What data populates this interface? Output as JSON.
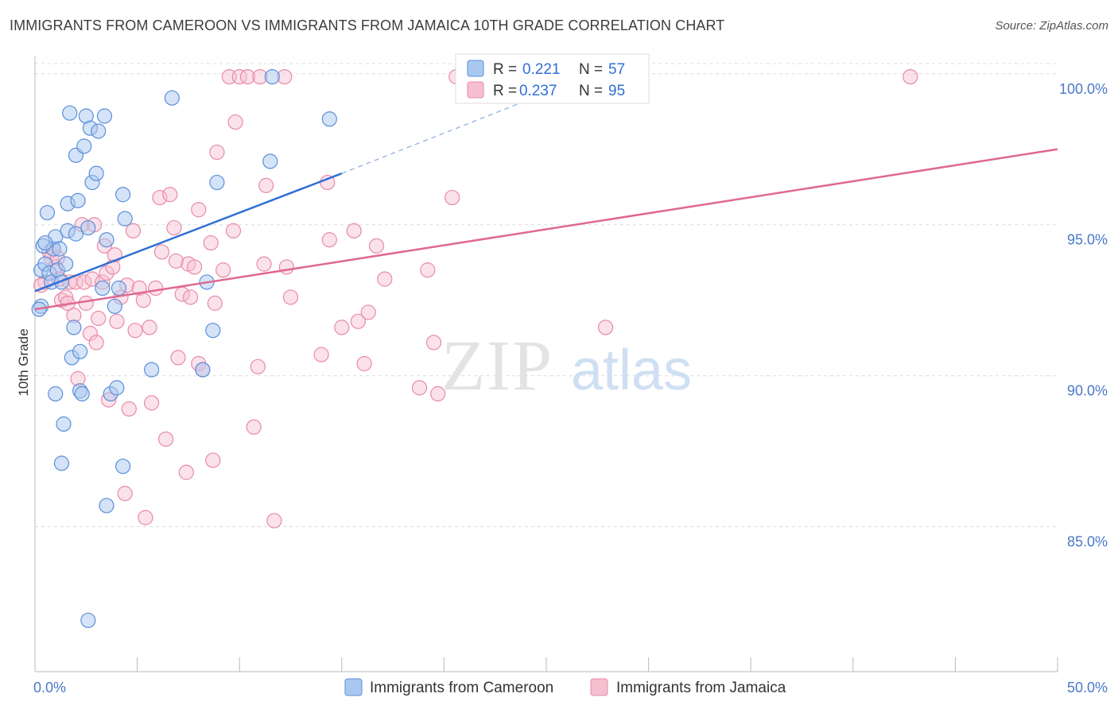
{
  "title": "IMMIGRANTS FROM CAMEROON VS IMMIGRANTS FROM JAMAICA 10TH GRADE CORRELATION CHART",
  "source": "Source: ZipAtlas.com",
  "watermark": {
    "zip": "ZIP",
    "atlas": "atlas"
  },
  "legend": {
    "r_label": "R =",
    "n_label": "N =",
    "entries": [
      {
        "r": "0.221",
        "n": "57"
      },
      {
        "r": "0.237",
        "n": "95"
      }
    ]
  },
  "chart_data": {
    "type": "scatter",
    "title": "IMMIGRANTS FROM CAMEROON VS IMMIGRANTS FROM JAMAICA 10TH GRADE CORRELATION CHART",
    "xlabel": "",
    "ylabel": "10th Grade",
    "xlim": [
      0,
      50
    ],
    "ylim": [
      80.2,
      100.6
    ],
    "x_tick_labels": [
      "0.0%",
      "50.0%"
    ],
    "y_ticks": [
      85,
      90,
      95,
      100
    ],
    "y_tick_labels": [
      "85.0%",
      "90.0%",
      "95.0%",
      "100.0%"
    ],
    "grid": true,
    "legend_position": "top-center",
    "colors": {
      "cameroon_fill": "#a9c8f0",
      "cameroon_stroke": "#5b8fd9",
      "cameroon_line": "#2f6fd6",
      "jamaica_fill": "#f6bfd0",
      "jamaica_stroke": "#e88aa8",
      "jamaica_line": "#e0688f"
    },
    "series": [
      {
        "name": "Immigrants from Cameroon",
        "r": 0.221,
        "n": 57,
        "trend": {
          "x": [
            0,
            15
          ],
          "y": [
            92.8,
            96.7
          ],
          "dashed_to": [
            24,
            99.1
          ]
        },
        "points": [
          [
            0.3,
            92.3
          ],
          [
            0.3,
            93.5
          ],
          [
            0.4,
            94.3
          ],
          [
            0.5,
            93.7
          ],
          [
            0.6,
            95.4
          ],
          [
            0.7,
            93.4
          ],
          [
            0.8,
            93.1
          ],
          [
            0.9,
            94.2
          ],
          [
            1.0,
            94.6
          ],
          [
            1.1,
            93.5
          ],
          [
            1.2,
            94.2
          ],
          [
            1.3,
            93.1
          ],
          [
            1.5,
            93.7
          ],
          [
            1.6,
            95.7
          ],
          [
            1.6,
            94.8
          ],
          [
            1.7,
            98.7
          ],
          [
            1.8,
            90.6
          ],
          [
            1.9,
            91.6
          ],
          [
            2.0,
            94.7
          ],
          [
            2.0,
            97.3
          ],
          [
            2.1,
            95.8
          ],
          [
            2.2,
            89.5
          ],
          [
            2.3,
            89.4
          ],
          [
            2.4,
            97.6
          ],
          [
            2.5,
            98.6
          ],
          [
            2.6,
            94.9
          ],
          [
            2.7,
            98.2
          ],
          [
            2.8,
            96.4
          ],
          [
            3.0,
            96.7
          ],
          [
            3.1,
            98.1
          ],
          [
            3.3,
            92.9
          ],
          [
            3.4,
            98.6
          ],
          [
            3.5,
            94.5
          ],
          [
            3.7,
            89.4
          ],
          [
            3.9,
            92.3
          ],
          [
            4.0,
            89.6
          ],
          [
            4.1,
            92.9
          ],
          [
            4.3,
            96.0
          ],
          [
            4.4,
            95.2
          ],
          [
            5.7,
            90.2
          ],
          [
            6.7,
            99.2
          ],
          [
            8.2,
            90.2
          ],
          [
            8.4,
            93.1
          ],
          [
            8.7,
            91.5
          ],
          [
            8.9,
            96.4
          ],
          [
            11.5,
            97.1
          ],
          [
            11.6,
            99.9
          ],
          [
            14.4,
            98.5
          ],
          [
            0.2,
            92.2
          ],
          [
            1.0,
            89.4
          ],
          [
            1.3,
            87.1
          ],
          [
            1.4,
            88.4
          ],
          [
            2.2,
            90.8
          ],
          [
            3.5,
            85.7
          ],
          [
            4.3,
            87.0
          ],
          [
            2.6,
            81.9
          ],
          [
            0.5,
            94.4
          ]
        ]
      },
      {
        "name": "Immigrants from Jamaica",
        "r": 0.237,
        "n": 95,
        "trend": {
          "x": [
            0,
            50
          ],
          "y": [
            92.2,
            97.5
          ]
        },
        "points": [
          [
            0.5,
            93.1
          ],
          [
            0.7,
            94.1
          ],
          [
            0.8,
            93.9
          ],
          [
            0.9,
            94.2
          ],
          [
            1.0,
            93.6
          ],
          [
            1.1,
            93.9
          ],
          [
            1.2,
            93.2
          ],
          [
            1.3,
            92.5
          ],
          [
            1.5,
            92.6
          ],
          [
            1.6,
            92.4
          ],
          [
            1.7,
            93.1
          ],
          [
            1.9,
            92.0
          ],
          [
            2.0,
            93.1
          ],
          [
            2.1,
            89.9
          ],
          [
            2.3,
            95.0
          ],
          [
            2.4,
            93.1
          ],
          [
            2.5,
            92.4
          ],
          [
            2.7,
            91.4
          ],
          [
            2.8,
            93.2
          ],
          [
            2.9,
            95.0
          ],
          [
            3.0,
            91.1
          ],
          [
            3.1,
            91.9
          ],
          [
            3.3,
            93.1
          ],
          [
            3.4,
            94.3
          ],
          [
            3.5,
            93.4
          ],
          [
            3.6,
            89.2
          ],
          [
            3.8,
            93.6
          ],
          [
            3.9,
            94.0
          ],
          [
            4.0,
            91.8
          ],
          [
            4.2,
            92.6
          ],
          [
            4.4,
            86.1
          ],
          [
            4.5,
            93.0
          ],
          [
            4.6,
            88.9
          ],
          [
            4.8,
            94.8
          ],
          [
            4.9,
            91.5
          ],
          [
            5.1,
            92.9
          ],
          [
            5.3,
            92.5
          ],
          [
            5.4,
            85.3
          ],
          [
            5.6,
            91.6
          ],
          [
            5.7,
            89.1
          ],
          [
            5.9,
            92.9
          ],
          [
            6.1,
            95.9
          ],
          [
            6.2,
            94.1
          ],
          [
            6.4,
            87.9
          ],
          [
            6.6,
            96.0
          ],
          [
            6.8,
            94.9
          ],
          [
            6.9,
            93.8
          ],
          [
            7.0,
            90.6
          ],
          [
            7.2,
            92.7
          ],
          [
            7.4,
            86.8
          ],
          [
            7.5,
            93.7
          ],
          [
            7.6,
            92.6
          ],
          [
            7.8,
            93.6
          ],
          [
            8.0,
            95.5
          ],
          [
            8.0,
            90.4
          ],
          [
            8.2,
            90.2
          ],
          [
            8.6,
            94.4
          ],
          [
            8.7,
            87.2
          ],
          [
            8.8,
            92.4
          ],
          [
            8.9,
            97.4
          ],
          [
            9.2,
            93.5
          ],
          [
            9.5,
            99.9
          ],
          [
            9.7,
            94.8
          ],
          [
            9.8,
            98.4
          ],
          [
            10.0,
            99.9
          ],
          [
            10.4,
            99.9
          ],
          [
            10.7,
            88.3
          ],
          [
            10.9,
            90.3
          ],
          [
            11.0,
            99.9
          ],
          [
            11.3,
            96.3
          ],
          [
            11.2,
            93.7
          ],
          [
            11.7,
            85.2
          ],
          [
            12.2,
            99.9
          ],
          [
            12.3,
            93.6
          ],
          [
            12.5,
            92.6
          ],
          [
            14.0,
            90.7
          ],
          [
            14.3,
            96.4
          ],
          [
            14.4,
            94.5
          ],
          [
            15.0,
            91.6
          ],
          [
            15.6,
            94.8
          ],
          [
            15.8,
            91.8
          ],
          [
            16.1,
            90.4
          ],
          [
            16.3,
            92.1
          ],
          [
            16.7,
            94.3
          ],
          [
            17.1,
            93.2
          ],
          [
            18.8,
            89.6
          ],
          [
            19.2,
            93.5
          ],
          [
            19.5,
            91.1
          ],
          [
            19.7,
            89.4
          ],
          [
            20.4,
            95.9
          ],
          [
            20.6,
            99.9
          ],
          [
            27.4,
            99.9
          ],
          [
            27.9,
            91.6
          ],
          [
            42.8,
            99.9
          ],
          [
            0.3,
            93.0
          ]
        ]
      }
    ]
  }
}
